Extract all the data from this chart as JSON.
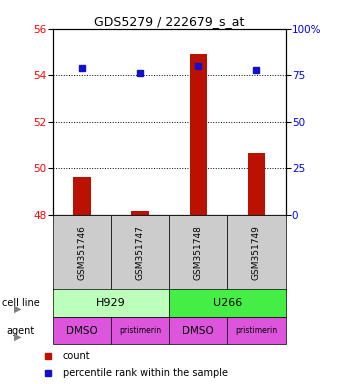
{
  "title": "GDS5279 / 222679_s_at",
  "samples": [
    "GSM351746",
    "GSM351747",
    "GSM351748",
    "GSM351749"
  ],
  "bar_values": [
    49.65,
    48.18,
    54.9,
    50.65
  ],
  "bar_bottom": 48.0,
  "dot_values": [
    79,
    76,
    80,
    78
  ],
  "bar_color": "#bb1100",
  "dot_color": "#1111cc",
  "ylim_left": [
    48,
    56
  ],
  "ylim_right": [
    0,
    100
  ],
  "yticks_left": [
    48,
    50,
    52,
    54,
    56
  ],
  "yticks_right": [
    0,
    25,
    50,
    75,
    100
  ],
  "ytick_labels_right": [
    "0",
    "25",
    "50",
    "75",
    "100%"
  ],
  "grid_yticks": [
    50,
    52,
    54
  ],
  "cell_line_spans": [
    [
      0,
      1,
      "H929",
      "#bbffbb"
    ],
    [
      2,
      3,
      "U266",
      "#44ee44"
    ]
  ],
  "agent_labels": [
    "DMSO",
    "pristimerin",
    "DMSO",
    "pristimerin"
  ],
  "agent_color": "#dd55dd",
  "sample_box_color": "#cccccc",
  "legend_items": [
    {
      "label": "count",
      "color": "#bb1100"
    },
    {
      "label": "percentile rank within the sample",
      "color": "#1111cc"
    }
  ],
  "cell_line_label_text": "cell line",
  "agent_label_text": "agent",
  "bar_width": 0.3
}
